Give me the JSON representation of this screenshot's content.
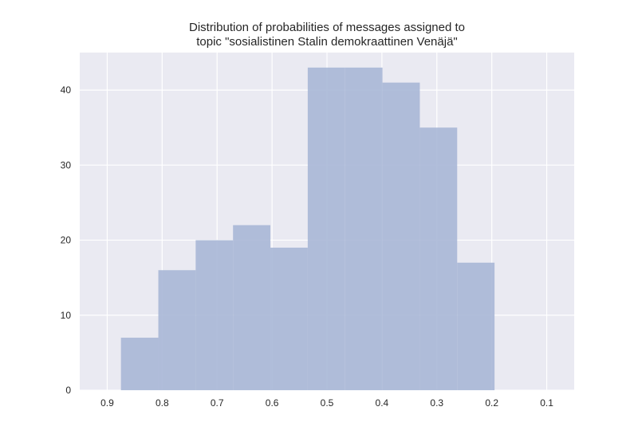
{
  "chart_data": {
    "type": "bar",
    "title": "Distribution of probabilities of messages assigned to",
    "title_line2": "topic \"sosialistinen Stalin demokraattinen Venäjä\"",
    "xlabel": "",
    "ylabel": "",
    "x_axis_reversed": true,
    "xlim": [
      0.95,
      0.05
    ],
    "ylim": [
      0,
      45
    ],
    "x_ticks": [
      0.9,
      0.8,
      0.7,
      0.6,
      0.5,
      0.4,
      0.3,
      0.2,
      0.1
    ],
    "x_tick_labels": [
      "0.9",
      "0.8",
      "0.7",
      "0.6",
      "0.5",
      "0.4",
      "0.3",
      "0.2",
      "0.1"
    ],
    "y_ticks": [
      0,
      10,
      20,
      30,
      40
    ],
    "y_tick_labels": [
      "0",
      "10",
      "20",
      "30",
      "40"
    ],
    "grid": true,
    "bin_edges": [
      0.875,
      0.807,
      0.739,
      0.671,
      0.603,
      0.535,
      0.467,
      0.399,
      0.331,
      0.263,
      0.195
    ],
    "values": [
      7,
      16,
      20,
      22,
      19,
      43,
      43,
      41,
      35,
      17
    ],
    "colors": {
      "bar": "#a8b7d6",
      "plot_bg": "#eaeaf2",
      "grid": "#ffffff",
      "text": "#262626"
    }
  }
}
